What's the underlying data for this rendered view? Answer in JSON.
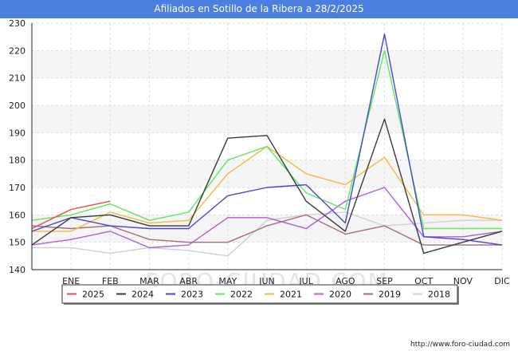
{
  "title": "Afiliados en Sotillo de la Ribera a 28/2/2025",
  "watermark": "FORO-CIUDAD.COM",
  "footer_url": "http://www.foro-ciudad.com",
  "chart_data": {
    "type": "line",
    "title": "Afiliados en Sotillo de la Ribera a 28/2/2025",
    "x_labels": [
      "",
      "ENE",
      "FEB",
      "MAR",
      "ABR",
      "MAY",
      "JUN",
      "JUL",
      "AGO",
      "SEP",
      "OCT",
      "NOV",
      "DIC"
    ],
    "ylim": [
      140,
      230
    ],
    "yticks": [
      140,
      150,
      160,
      170,
      180,
      190,
      200,
      210,
      220,
      230
    ],
    "grid": true,
    "legend_position": "bottom",
    "series": [
      {
        "name": "2018",
        "color": "#d0d0d0",
        "values": [
          148,
          148,
          146,
          148,
          147,
          145,
          158,
          160,
          161,
          156,
          157,
          158,
          158
        ]
      },
      {
        "name": "2019",
        "color": "#a86a78",
        "values": [
          156,
          155,
          156,
          151,
          150,
          150,
          156,
          160,
          153,
          156,
          149,
          149,
          149
        ]
      },
      {
        "name": "2020",
        "color": "#b05ce0",
        "values": [
          149,
          151,
          154,
          148,
          149,
          159,
          159,
          155,
          165,
          170,
          152,
          152,
          154
        ]
      },
      {
        "name": "2021",
        "color": "#f5b840",
        "values": [
          154,
          154,
          161,
          157,
          158,
          175,
          185,
          175,
          171,
          181,
          160,
          160,
          158
        ]
      },
      {
        "name": "2022",
        "color": "#5ce85c",
        "values": [
          158,
          160,
          164,
          158,
          161,
          180,
          185,
          168,
          162,
          220,
          155,
          155,
          155
        ]
      },
      {
        "name": "2023",
        "color": "#4646d8",
        "values": [
          154,
          159,
          156,
          155,
          155,
          167,
          170,
          171,
          157,
          226,
          152,
          151,
          149
        ]
      },
      {
        "name": "2024",
        "color": "#3a3a3a",
        "values": [
          149,
          159,
          160,
          156,
          156,
          188,
          189,
          165,
          154,
          195,
          146,
          150,
          154
        ]
      },
      {
        "name": "2025",
        "color": "#e84848",
        "values": [
          155,
          162,
          165
        ]
      }
    ],
    "legend_order": [
      "2025",
      "2024",
      "2023",
      "2022",
      "2021",
      "2020",
      "2019",
      "2018"
    ]
  }
}
